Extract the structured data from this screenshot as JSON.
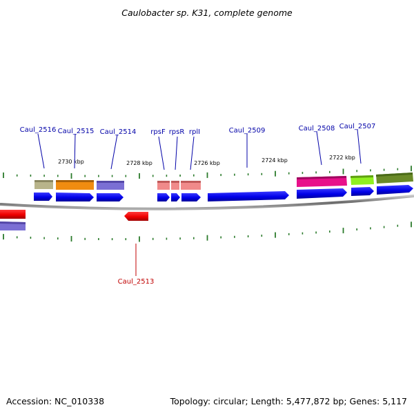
{
  "title": "Caulobacter sp. K31, complete genome",
  "footer": {
    "accession": "Accession: NC_010338",
    "summary": "Topology: circular; Length: 5,477,872 bp; Genes: 5,117"
  },
  "colors": {
    "forward_label": "#0000a8",
    "reverse_label": "#c00000",
    "cds_forward": "#0000ee",
    "cds_reverse": "#ee0000",
    "backbone": "#888888",
    "tick": "#2a7a2a"
  },
  "tick_labels": [
    "2730 kbp",
    "2728 kbp",
    "2726 kbp",
    "2724 kbp",
    "2722 kbp"
  ],
  "genes": {
    "forward": [
      {
        "name": "Caul_2516",
        "category_color": "#b8b48a"
      },
      {
        "name": "Caul_2515",
        "category_color": "#f08c10"
      },
      {
        "name": "Caul_2514",
        "category_color": "#7b6fd4"
      },
      {
        "name": "rpsF",
        "category_color": "#f08a8a"
      },
      {
        "name": "rpsR",
        "category_color": "#f08a8a"
      },
      {
        "name": "rplI",
        "category_color": "#f08a8a"
      },
      {
        "name": "Caul_2509",
        "category_color": ""
      },
      {
        "name": "Caul_2508",
        "category_color": "#e8108a"
      },
      {
        "name": "Caul_2507",
        "category_color": "#90f020"
      }
    ],
    "reverse": [
      {
        "name": "Caul_2513",
        "category_color": ""
      }
    ]
  }
}
